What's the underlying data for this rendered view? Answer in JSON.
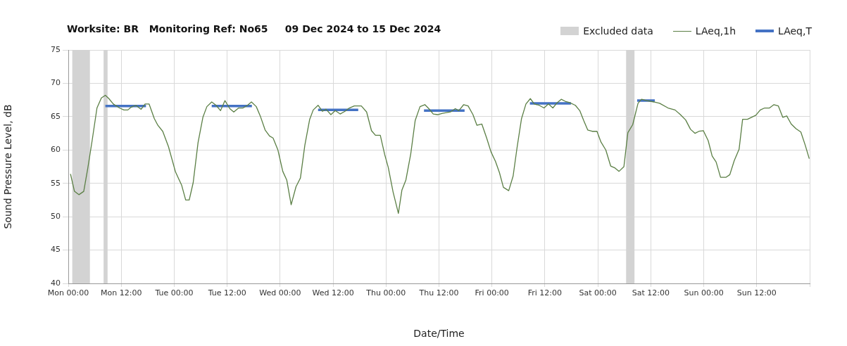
{
  "chart_data": {
    "type": "line",
    "title": "Worksite: BR   Monitoring Ref: No65     09 Dec 2024 to 15 Dec 2024",
    "xlabel": "Date/Time",
    "ylabel": "Sound Pressure Level, dB",
    "xlim": [
      "2024-12-09T00:00",
      "2024-12-16T00:00"
    ],
    "xticks": [
      {
        "value": "2024-12-09T00:00",
        "label": "Mon 00:00"
      },
      {
        "value": "2024-12-09T12:00",
        "label": "Mon 12:00"
      },
      {
        "value": "2024-12-10T00:00",
        "label": "Tue 00:00"
      },
      {
        "value": "2024-12-10T12:00",
        "label": "Tue 12:00"
      },
      {
        "value": "2024-12-11T00:00",
        "label": "Wed 00:00"
      },
      {
        "value": "2024-12-11T12:00",
        "label": "Wed 12:00"
      },
      {
        "value": "2024-12-12T00:00",
        "label": "Thu 00:00"
      },
      {
        "value": "2024-12-12T12:00",
        "label": "Thu 12:00"
      },
      {
        "value": "2024-12-13T00:00",
        "label": "Fri 00:00"
      },
      {
        "value": "2024-12-13T12:00",
        "label": "Fri 12:00"
      },
      {
        "value": "2024-12-14T00:00",
        "label": "Sat 00:00"
      },
      {
        "value": "2024-12-14T12:00",
        "label": "Sat 12:00"
      },
      {
        "value": "2024-12-15T00:00",
        "label": "Sun 00:00"
      },
      {
        "value": "2024-12-15T12:00",
        "label": "Sun 12:00"
      },
      {
        "value": "2024-12-16T00:00",
        "label": null
      }
    ],
    "ylim": [
      40,
      75
    ],
    "yticks": [
      40,
      45,
      50,
      55,
      60,
      65,
      70,
      75
    ],
    "grid": true,
    "legend": "top right",
    "marker": "none",
    "bands": [
      {
        "axis": "x",
        "from": "2024-12-09T00:54",
        "to": "2024-12-09T04:54",
        "label": "Excluded data",
        "color": "#d3d3d3"
      },
      {
        "axis": "x",
        "from": "2024-12-09T08:00",
        "to": "2024-12-09T08:54",
        "color": "#d3d3d3"
      },
      {
        "axis": "x",
        "from": "2024-12-14T06:24",
        "to": "2024-12-14T08:18",
        "color": "#d3d3d3"
      }
    ],
    "series": [
      {
        "name": "LAeq,1h",
        "color": "#5b7f45",
        "x": [
          "2024-12-09T00:30",
          "2024-12-09T01:24",
          "2024-12-09T02:24",
          "2024-12-09T03:30",
          "2024-12-09T04:24",
          "2024-12-09T05:24",
          "2024-12-09T06:30",
          "2024-12-09T07:30",
          "2024-12-09T08:24",
          "2024-12-09T09:12",
          "2024-12-09T10:12",
          "2024-12-09T11:36",
          "2024-12-09T12:36",
          "2024-12-09T13:30",
          "2024-12-09T14:12",
          "2024-12-09T15:18",
          "2024-12-09T16:30",
          "2024-12-09T17:24",
          "2024-12-09T18:18",
          "2024-12-09T19:30",
          "2024-12-09T20:18",
          "2024-12-09T21:24",
          "2024-12-09T22:42",
          "2024-12-10T00:18",
          "2024-12-10T01:42",
          "2024-12-10T02:36",
          "2024-12-10T03:24",
          "2024-12-10T04:18",
          "2024-12-10T05:24",
          "2024-12-10T06:30",
          "2024-12-10T07:24",
          "2024-12-10T08:30",
          "2024-12-10T09:30",
          "2024-12-10T10:30",
          "2024-12-10T11:30",
          "2024-12-10T12:36",
          "2024-12-10T13:30",
          "2024-12-10T14:36",
          "2024-12-10T15:36",
          "2024-12-10T16:36",
          "2024-12-10T17:30",
          "2024-12-10T18:36",
          "2024-12-10T19:30",
          "2024-12-10T20:36",
          "2024-12-10T21:36",
          "2024-12-10T22:24",
          "2024-12-10T23:30",
          "2024-12-11T00:36",
          "2024-12-11T01:30",
          "2024-12-11T02:30",
          "2024-12-11T03:36",
          "2024-12-11T04:36",
          "2024-12-11T05:36",
          "2024-12-11T06:42",
          "2024-12-11T07:30",
          "2024-12-11T08:36",
          "2024-12-11T09:36",
          "2024-12-11T10:24",
          "2024-12-11T11:30",
          "2024-12-11T12:30",
          "2024-12-11T13:36",
          "2024-12-11T14:42",
          "2024-12-11T15:42",
          "2024-12-11T16:48",
          "2024-12-11T18:24",
          "2024-12-11T19:36",
          "2024-12-11T20:42",
          "2024-12-11T21:36",
          "2024-12-11T22:42",
          "2024-12-11T23:42",
          "2024-12-12T00:30",
          "2024-12-12T01:36",
          "2024-12-12T02:48",
          "2024-12-12T03:36",
          "2024-12-12T04:30",
          "2024-12-12T05:36",
          "2024-12-12T06:36",
          "2024-12-12T07:42",
          "2024-12-12T08:48",
          "2024-12-12T09:42",
          "2024-12-12T10:42",
          "2024-12-12T11:42",
          "2024-12-12T12:48",
          "2024-12-12T14:36",
          "2024-12-12T15:42",
          "2024-12-12T16:30",
          "2024-12-12T17:36",
          "2024-12-12T18:36",
          "2024-12-12T19:42",
          "2024-12-12T20:36",
          "2024-12-12T21:42",
          "2024-12-12T22:48",
          "2024-12-12T23:48",
          "2024-12-13T00:48",
          "2024-12-13T01:42",
          "2024-12-13T02:36",
          "2024-12-13T03:48",
          "2024-12-13T04:48",
          "2024-12-13T05:42",
          "2024-12-13T06:42",
          "2024-12-13T07:42",
          "2024-12-13T08:42",
          "2024-12-13T09:36",
          "2024-12-13T10:42",
          "2024-12-13T11:48",
          "2024-12-13T12:48",
          "2024-12-13T13:48",
          "2024-12-13T14:48",
          "2024-12-13T15:42",
          "2024-12-13T16:36",
          "2024-12-13T17:36",
          "2024-12-13T18:54",
          "2024-12-13T19:54",
          "2024-12-13T20:48",
          "2024-12-13T21:42",
          "2024-12-13T22:42",
          "2024-12-13T23:48",
          "2024-12-14T00:42",
          "2024-12-14T01:48",
          "2024-12-14T02:54",
          "2024-12-14T03:54",
          "2024-12-14T04:48",
          "2024-12-14T05:54",
          "2024-12-14T06:48",
          "2024-12-14T07:54",
          "2024-12-14T09:06",
          "2024-12-14T09:54",
          "2024-12-14T11:06",
          "2024-12-14T12:42",
          "2024-12-14T14:00",
          "2024-12-14T15:54",
          "2024-12-14T17:30",
          "2024-12-14T18:42",
          "2024-12-14T19:54",
          "2024-12-14T21:00",
          "2024-12-14T22:00",
          "2024-12-14T22:54",
          "2024-12-14T23:54",
          "2024-12-15T01:00",
          "2024-12-15T01:54",
          "2024-12-15T02:48",
          "2024-12-15T03:48",
          "2024-12-15T05:00",
          "2024-12-15T05:54",
          "2024-12-15T06:54",
          "2024-12-15T08:00",
          "2024-12-15T08:48",
          "2024-12-15T09:54",
          "2024-12-15T10:48",
          "2024-12-15T11:48",
          "2024-12-15T12:48",
          "2024-12-15T13:48",
          "2024-12-15T14:54",
          "2024-12-15T15:54",
          "2024-12-15T16:54",
          "2024-12-15T17:54",
          "2024-12-15T18:48",
          "2024-12-15T19:48",
          "2024-12-15T20:54",
          "2024-12-15T22:00",
          "2024-12-15T23:00",
          "2024-12-15T23:54"
        ],
        "values": [
          56.4,
          53.8,
          53.3,
          53.8,
          57.2,
          61.4,
          66.3,
          67.8,
          68.2,
          67.7,
          66.9,
          66.3,
          66.0,
          66.0,
          66.4,
          66.7,
          66.1,
          66.9,
          66.9,
          64.7,
          63.7,
          62.8,
          60.5,
          56.7,
          54.7,
          52.5,
          52.5,
          55.1,
          61.1,
          64.9,
          66.5,
          67.2,
          66.7,
          65.9,
          67.4,
          66.2,
          65.7,
          66.3,
          66.3,
          66.7,
          67.2,
          66.5,
          65.1,
          63.0,
          62.1,
          61.8,
          60.0,
          56.8,
          55.5,
          51.8,
          54.5,
          55.8,
          60.7,
          64.6,
          66.0,
          66.7,
          65.8,
          66.1,
          65.3,
          65.9,
          65.4,
          65.8,
          66.3,
          66.6,
          66.6,
          65.7,
          62.9,
          62.2,
          62.2,
          59.3,
          57.4,
          53.7,
          50.5,
          54.0,
          55.5,
          59.4,
          64.4,
          66.5,
          66.8,
          66.2,
          65.4,
          65.3,
          65.5,
          65.7,
          66.2,
          65.9,
          66.8,
          66.6,
          65.3,
          63.7,
          63.9,
          61.8,
          59.7,
          58.3,
          56.6,
          54.4,
          53.9,
          56.1,
          60.4,
          64.7,
          66.9,
          67.7,
          66.9,
          66.7,
          66.3,
          66.9,
          66.3,
          67.1,
          67.6,
          67.3,
          67.1,
          66.7,
          65.9,
          64.4,
          63.0,
          62.8,
          62.8,
          61.2,
          60.0,
          57.6,
          57.3,
          56.8,
          57.5,
          62.6,
          63.8,
          67.0,
          67.6,
          67.4,
          67.2,
          67.0,
          66.3,
          66.0,
          65.3,
          64.5,
          63.1,
          62.5,
          62.8,
          62.9,
          61.4,
          59.1,
          58.2,
          55.9,
          55.9,
          56.3,
          58.4,
          60.1,
          64.6,
          64.6,
          64.9,
          65.2,
          66.0,
          66.3,
          66.3,
          66.8,
          66.6,
          64.9,
          65.1,
          63.9,
          63.2,
          62.7,
          60.7,
          58.7
        ]
      },
      {
        "name": "LAeq,T",
        "color": "#4472c4",
        "x": [
          "2024-12-09T08:24",
          "2024-12-09T17:36",
          "2024-12-10T01:00",
          "2024-12-10T08:30",
          "2024-12-10T17:36",
          "2024-12-11T02:00",
          "2024-12-11T08:36",
          "2024-12-11T17:42",
          "2024-12-12T01:00",
          "2024-12-12T08:36",
          "2024-12-12T17:48",
          "2024-12-13T01:00",
          "2024-12-13T08:36",
          "2024-12-13T17:54",
          "2024-12-14T01:00",
          "2024-12-14T08:54",
          "2024-12-14T12:54"
        ],
        "values": [
          66.6,
          66.6,
          null,
          66.6,
          66.6,
          null,
          66.0,
          66.0,
          null,
          65.9,
          65.9,
          null,
          67.0,
          67.0,
          null,
          67.4,
          67.4
        ]
      }
    ]
  }
}
